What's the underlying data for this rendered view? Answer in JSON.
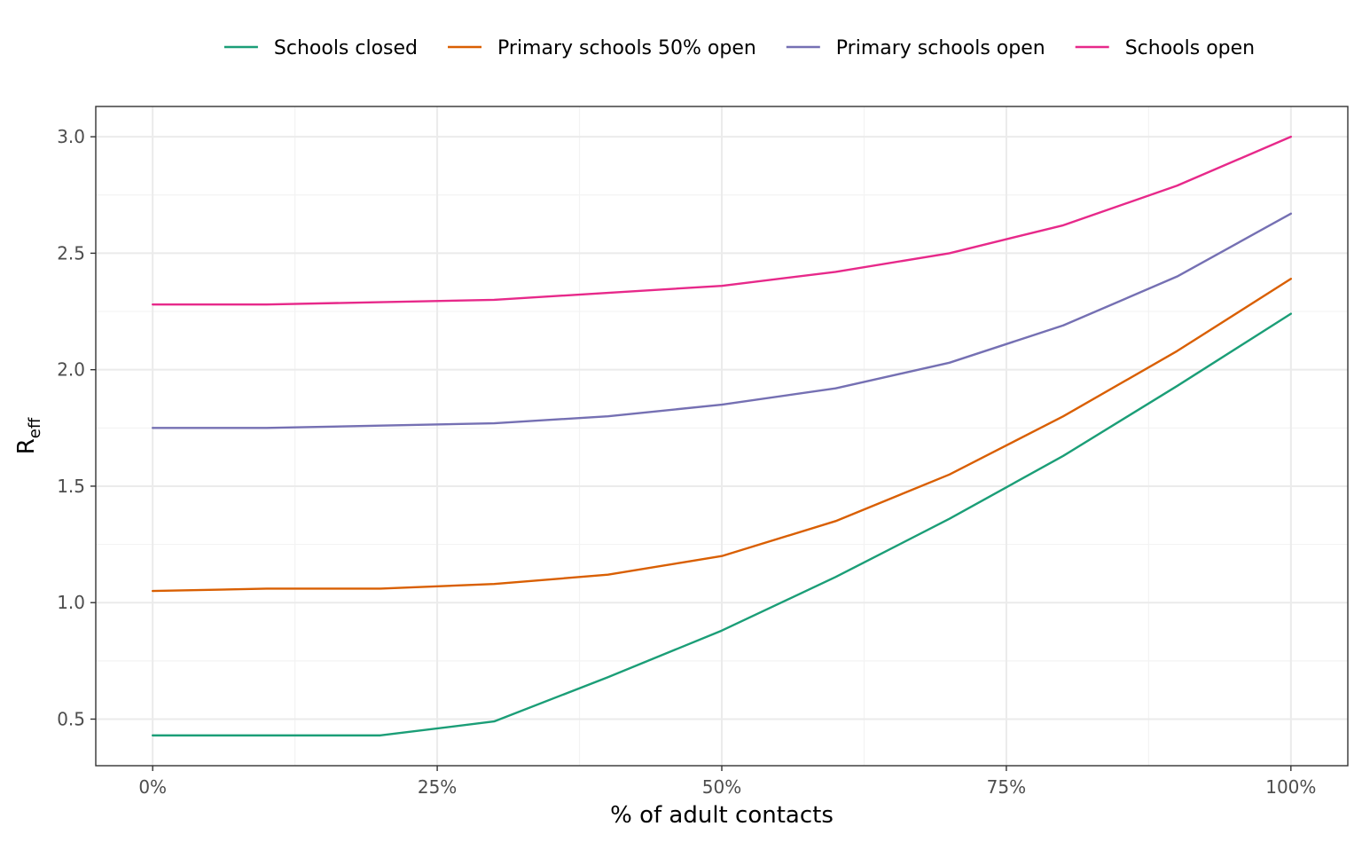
{
  "chart_data": {
    "type": "line",
    "title": "",
    "xlabel": "% of adult contacts",
    "ylabel": "R",
    "ylabel_sub": "eff",
    "x": [
      0,
      10,
      20,
      30,
      40,
      50,
      60,
      70,
      80,
      90,
      100
    ],
    "xlim": [
      -5,
      105
    ],
    "ylim": [
      0.3,
      3.13
    ],
    "x_ticks": [
      {
        "value": 0,
        "label": "0%"
      },
      {
        "value": 25,
        "label": "25%"
      },
      {
        "value": 50,
        "label": "50%"
      },
      {
        "value": 75,
        "label": "75%"
      },
      {
        "value": 100,
        "label": "100%"
      }
    ],
    "y_ticks": [
      {
        "value": 0.5,
        "label": "0.5"
      },
      {
        "value": 1.0,
        "label": "1.0"
      },
      {
        "value": 1.5,
        "label": "1.5"
      },
      {
        "value": 2.0,
        "label": "2.0"
      },
      {
        "value": 2.5,
        "label": "2.5"
      },
      {
        "value": 3.0,
        "label": "3.0"
      }
    ],
    "grid": true,
    "legend_position": "top",
    "series": [
      {
        "name": "Schools closed",
        "color": "#1b9e77",
        "values": [
          0.43,
          0.43,
          0.43,
          0.49,
          0.68,
          0.88,
          1.11,
          1.36,
          1.63,
          1.93,
          2.24
        ]
      },
      {
        "name": "Primary schools 50% open",
        "color": "#d95f02",
        "values": [
          1.05,
          1.06,
          1.06,
          1.08,
          1.12,
          1.2,
          1.35,
          1.55,
          1.8,
          2.08,
          2.39
        ]
      },
      {
        "name": "Primary schools open",
        "color": "#7570b3",
        "values": [
          1.75,
          1.75,
          1.76,
          1.77,
          1.8,
          1.85,
          1.92,
          2.03,
          2.19,
          2.4,
          2.67
        ]
      },
      {
        "name": "Schools open",
        "color": "#e7298a",
        "values": [
          2.28,
          2.28,
          2.29,
          2.3,
          2.33,
          2.36,
          2.42,
          2.5,
          2.62,
          2.79,
          3.0
        ]
      }
    ]
  }
}
